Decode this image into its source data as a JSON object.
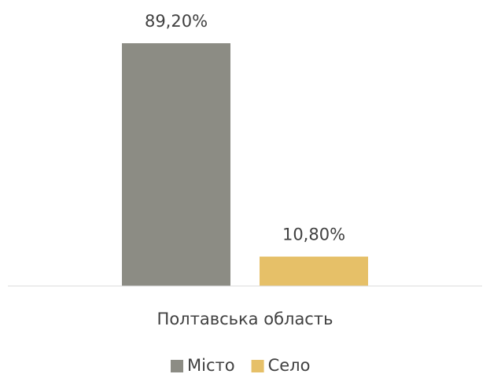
{
  "chart_data": {
    "type": "bar",
    "categories": [
      "Полтавська область"
    ],
    "series": [
      {
        "name": "Місто",
        "color": "#8c8c84",
        "values": [
          89.2
        ],
        "value_labels": [
          "89,20%"
        ]
      },
      {
        "name": "Село",
        "color": "#e6c068",
        "values": [
          10.8
        ],
        "value_labels": [
          "10,80%"
        ]
      }
    ],
    "ylim": [
      0,
      100
    ],
    "legend": "bottom"
  }
}
